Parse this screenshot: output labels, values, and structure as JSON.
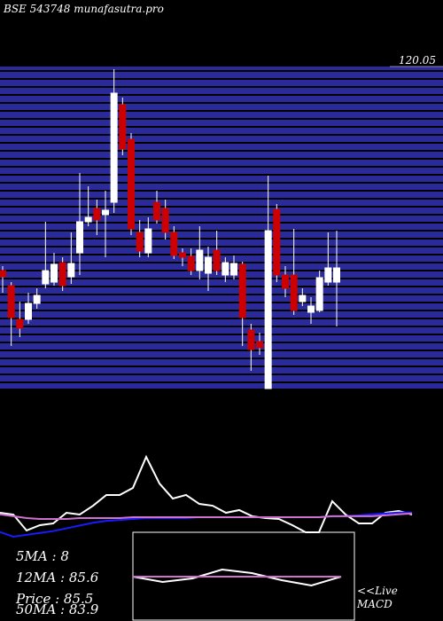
{
  "chart_data": {
    "type": "candlestick",
    "title": "BSE 543748 munafasutra.pro",
    "ylim": [
      83.75,
      120.05
    ],
    "yticks": [
      120.05
    ],
    "up_color": "#ffffff",
    "down_color": "#cc0000",
    "ohlc": [
      [
        97.05,
        97.55,
        94.55,
        96.35
      ],
      [
        95.35,
        95.75,
        88.55,
        91.75
      ],
      [
        91.55,
        93.55,
        89.55,
        90.55
      ],
      [
        91.55,
        94.55,
        91.05,
        93.35
      ],
      [
        93.35,
        95.05,
        92.75,
        94.25
      ],
      [
        95.55,
        102.55,
        95.05,
        97.05
      ],
      [
        95.75,
        99.05,
        95.35,
        97.75
      ],
      [
        97.95,
        98.55,
        94.75,
        95.35
      ],
      [
        96.35,
        101.35,
        95.55,
        97.85
      ],
      [
        99.05,
        108.05,
        96.55,
        102.55
      ],
      [
        102.55,
        106.55,
        102.05,
        103.05
      ],
      [
        104.05,
        105.05,
        101.05,
        102.75
      ],
      [
        103.35,
        106.05,
        98.55,
        103.85
      ],
      [
        104.75,
        119.75,
        103.55,
        117.05
      ],
      [
        115.75,
        116.55,
        110.05,
        110.75
      ],
      [
        111.85,
        112.55,
        101.05,
        101.75
      ],
      [
        101.35,
        102.75,
        98.55,
        99.25
      ],
      [
        99.05,
        103.05,
        98.55,
        101.75
      ],
      [
        104.75,
        106.05,
        102.35,
        102.75
      ],
      [
        104.05,
        105.05,
        100.55,
        101.35
      ],
      [
        101.35,
        102.05,
        98.35,
        98.75
      ],
      [
        99.05,
        99.55,
        97.55,
        98.55
      ],
      [
        98.65,
        99.55,
        96.55,
        97.05
      ],
      [
        97.05,
        102.05,
        96.05,
        99.35
      ],
      [
        96.75,
        99.75,
        94.75,
        98.55
      ],
      [
        99.35,
        101.55,
        96.55,
        97.05
      ],
      [
        96.55,
        98.55,
        95.75,
        97.95
      ],
      [
        96.55,
        98.75,
        96.05,
        97.85
      ],
      [
        97.75,
        98.05,
        88.55,
        91.75
      ],
      [
        90.35,
        91.05,
        85.75,
        88.15
      ],
      [
        89.05,
        90.05,
        87.55,
        88.35
      ],
      [
        83.75,
        107.75,
        83.75,
        101.55
      ],
      [
        103.95,
        104.55,
        95.75,
        96.55
      ],
      [
        96.55,
        97.55,
        94.05,
        95.05
      ],
      [
        96.55,
        101.75,
        92.05,
        92.55
      ],
      [
        93.55,
        95.05,
        93.05,
        94.25
      ],
      [
        92.35,
        94.05,
        91.05,
        93.05
      ],
      [
        92.55,
        97.05,
        92.35,
        96.25
      ],
      [
        95.75,
        101.35,
        95.35,
        97.35
      ],
      [
        95.75,
        101.55,
        90.75,
        97.35
      ]
    ],
    "indicator": {
      "ylim": [
        0,
        100
      ],
      "series": [
        {
          "color": "#ffffff",
          "values": [
            25.7,
            23.8,
            6.7,
            12.4,
            14.3,
            25.7,
            23.8,
            33.3,
            44.8,
            44.8,
            52.4,
            85.7,
            57.1,
            41,
            44.8,
            35.2,
            33.3,
            25.7,
            28.6,
            21.9,
            20,
            19,
            12.4,
            4.8,
            4.8,
            38.1,
            23.8,
            14.3,
            14.3,
            25.7,
            27.6,
            23.8
          ]
        },
        {
          "color": "#1a1aff",
          "values": [
            5,
            0,
            2,
            4,
            6,
            9,
            12,
            15,
            17,
            18,
            19,
            20,
            20,
            20,
            20,
            21,
            21,
            21,
            21,
            21,
            21,
            21,
            21,
            21,
            21,
            22,
            22,
            23,
            24,
            25,
            26,
            26
          ]
        },
        {
          "color": "#d070d0",
          "values": [
            24,
            22,
            20,
            19,
            19,
            19,
            20,
            20,
            20,
            20,
            21,
            21,
            21,
            21,
            21,
            21,
            21,
            21,
            21,
            21,
            21,
            21,
            21,
            21,
            21,
            22,
            22,
            22,
            22,
            23,
            24,
            25
          ]
        }
      ]
    },
    "macd": {
      "ylim": [
        0,
        100
      ],
      "series": [
        {
          "color": "#ffffff",
          "values": [
            50,
            44,
            48,
            58,
            54,
            46,
            40,
            50
          ]
        },
        {
          "color": "#d070d0",
          "values": [
            50,
            50
          ]
        }
      ]
    },
    "stats": [
      "5MA : 8",
      "12MA : 85.6",
      "Price  : 85.5",
      "50MA : 83.9"
    ],
    "live": "<<Live",
    "macd_label": "MACD"
  }
}
